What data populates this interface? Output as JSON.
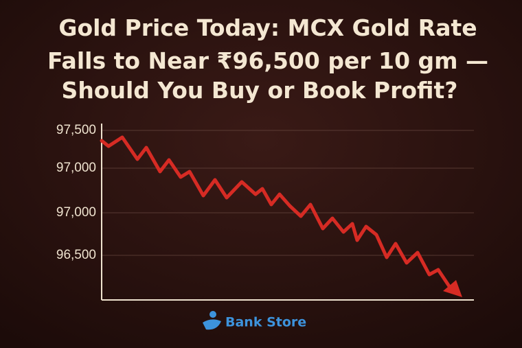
{
  "title_lines": [
    "Gold Price Today: MCX Gold Rate",
    "Falls to Near ₹96,500 per 10 gm —",
    "Should You Buy or Book Profit?"
  ],
  "y_axis_labels": [
    "97,500",
    "97,000",
    "97,000",
    "96,500"
  ],
  "logo": "Bank Store"
}
